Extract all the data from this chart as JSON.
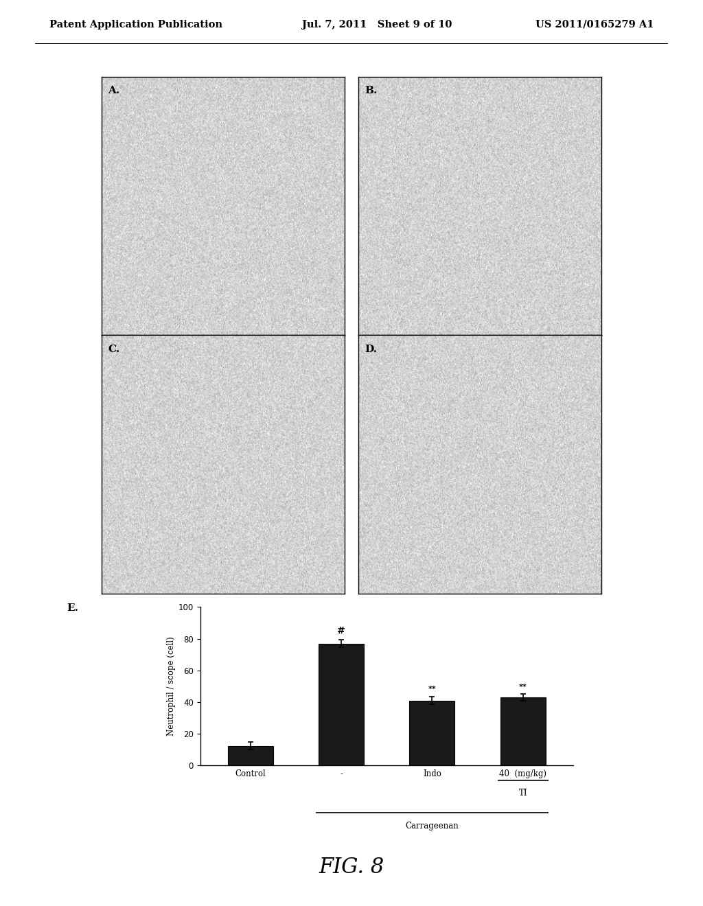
{
  "header_left": "Patent Application Publication",
  "header_mid": "Jul. 7, 2011   Sheet 9 of 10",
  "header_right": "US 2011/0165279 A1",
  "panel_labels": [
    "A.",
    "B.",
    "C.",
    "D."
  ],
  "panel_E_label": "E.",
  "bar_values": [
    12.5,
    77.0,
    41.0,
    43.0
  ],
  "bar_errors": [
    2.5,
    2.5,
    2.5,
    2.0
  ],
  "bar_color": "#1a1a1a",
  "categories": [
    "Control",
    "-",
    "Indo",
    "40  (mg/kg)"
  ],
  "ylabel": "Neutrophil / scope (cell)",
  "ylim": [
    0,
    100
  ],
  "yticks": [
    0,
    20,
    40,
    60,
    80,
    100
  ],
  "ann_bar1": "#",
  "ann_bar2": "**",
  "ann_bar3": "**",
  "carrageenan_label": "Carrageenan",
  "TI_label": "TI",
  "fig_label": "FIG. 8",
  "background_color": "#ffffff"
}
